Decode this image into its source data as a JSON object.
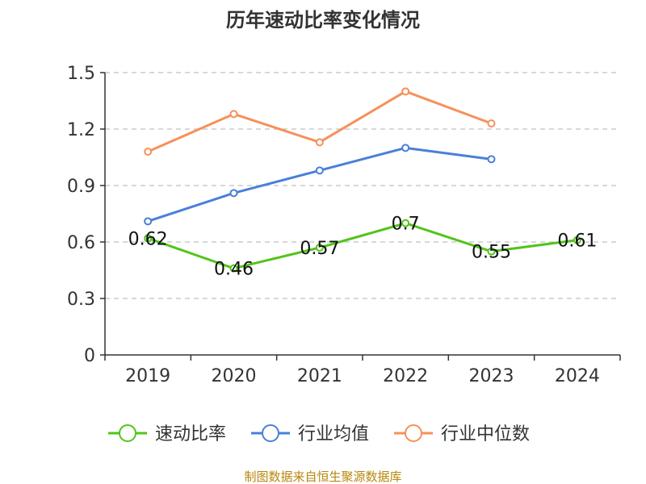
{
  "colors": {
    "speed_ratio": "#52c41a",
    "industry_avg": "#4a7fd9",
    "industry_median": "#f7905a",
    "grid": "#cccccc",
    "axis": "#333333",
    "source": "#b8860b"
  },
  "source_text": "制图数据来自恒生聚源数据库",
  "chart_data": {
    "type": "line",
    "title": "历年速动比率变化情况",
    "xlabel": "",
    "ylabel": "",
    "categories": [
      "2019",
      "2020",
      "2021",
      "2022",
      "2023",
      "2024"
    ],
    "ylim": [
      0,
      1.5
    ],
    "yticks": [
      0,
      0.3,
      0.6,
      0.9,
      1.2,
      1.5
    ],
    "ytick_labels": [
      "0",
      "0.3",
      "0.6",
      "0.9",
      "1.2",
      "1.5"
    ],
    "grid": true,
    "legend_position": "bottom",
    "series": [
      {
        "key": "speed_ratio",
        "name": "速动比率",
        "values": [
          0.62,
          0.46,
          0.57,
          0.7,
          0.55,
          0.61
        ],
        "labels": [
          "0.62",
          "0.46",
          "0.57",
          "0.7",
          "0.55",
          "0.61"
        ]
      },
      {
        "key": "industry_avg",
        "name": "行业均值",
        "values": [
          0.71,
          0.86,
          0.98,
          1.1,
          1.04,
          null
        ]
      },
      {
        "key": "industry_median",
        "name": "行业中位数",
        "values": [
          1.08,
          1.28,
          1.13,
          1.4,
          1.23,
          null
        ]
      }
    ]
  }
}
